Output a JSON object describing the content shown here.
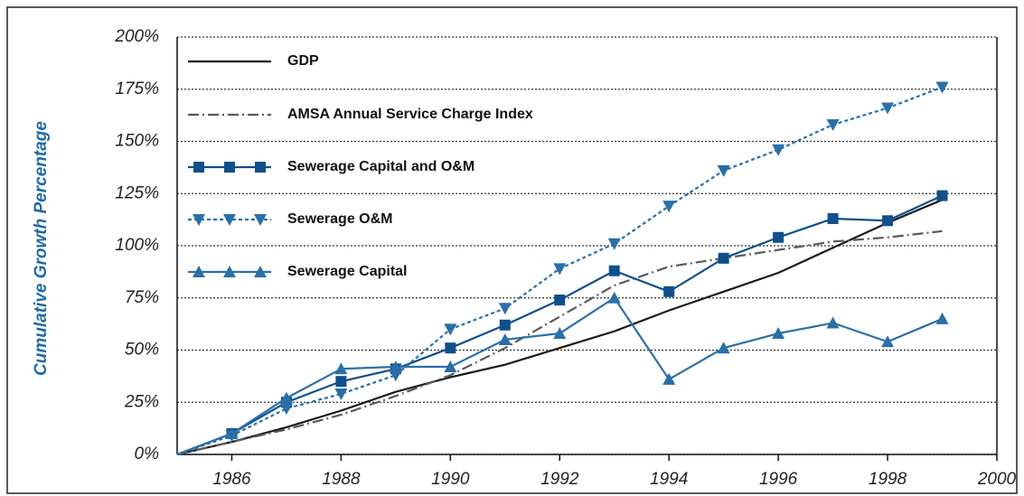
{
  "chart_data": {
    "type": "line",
    "y_label": "Cumulative Growth Percentage",
    "x": [
      1985,
      1986,
      1987,
      1988,
      1989,
      1990,
      1991,
      1992,
      1993,
      1994,
      1995,
      1996,
      1997,
      1998,
      1999
    ],
    "xlim": [
      1985,
      2000
    ],
    "xticks": [
      1986,
      1988,
      1990,
      1992,
      1994,
      1996,
      1998,
      2000
    ],
    "ylim": [
      0,
      200
    ],
    "yticks": [
      {
        "value": 0,
        "label": "0%"
      },
      {
        "value": 25,
        "label": "25%"
      },
      {
        "value": 50,
        "label": "50%"
      },
      {
        "value": 75,
        "label": "75%"
      },
      {
        "value": 100,
        "label": "100%"
      },
      {
        "value": 125,
        "label": "125%"
      },
      {
        "value": 150,
        "label": "150%"
      },
      {
        "value": 175,
        "label": "175%"
      },
      {
        "value": 200,
        "label": "200%"
      }
    ],
    "grid": true,
    "legend": "top-left",
    "series": [
      {
        "name": "GDP",
        "color": "#1a1a1a",
        "dash": "solid",
        "marker": "none",
        "values": [
          0,
          6,
          13,
          21,
          30,
          37,
          43,
          51,
          59,
          69,
          78,
          87,
          99,
          111,
          122
        ]
      },
      {
        "name": "AMSA Annual Service Charge Index",
        "color": "#5a5a5a",
        "dash": "dashdot",
        "marker": "none",
        "values": [
          0,
          6,
          12,
          19,
          28,
          38,
          51,
          66,
          81,
          90,
          94,
          98,
          102,
          104,
          107
        ]
      },
      {
        "name": "Sewerage Capital and O&M",
        "color": "#0f4f8a",
        "dash": "solid",
        "marker": "square",
        "values": [
          0,
          10,
          25,
          35,
          41,
          51,
          62,
          74,
          88,
          78,
          94,
          104,
          113,
          112,
          124
        ]
      },
      {
        "name": "Sewerage O&M",
        "color": "#2a6fa8",
        "dash": "dotted",
        "marker": "triangle-down",
        "values": [
          0,
          9,
          22,
          29,
          38,
          60,
          70,
          89,
          101,
          119,
          136,
          146,
          158,
          166,
          176
        ]
      },
      {
        "name": "Sewerage Capital",
        "color": "#2a6fa8",
        "dash": "solid",
        "marker": "triangle-up",
        "values": [
          0,
          10,
          27,
          41,
          42,
          42,
          55,
          58,
          75,
          36,
          51,
          58,
          63,
          54,
          65
        ]
      }
    ]
  }
}
